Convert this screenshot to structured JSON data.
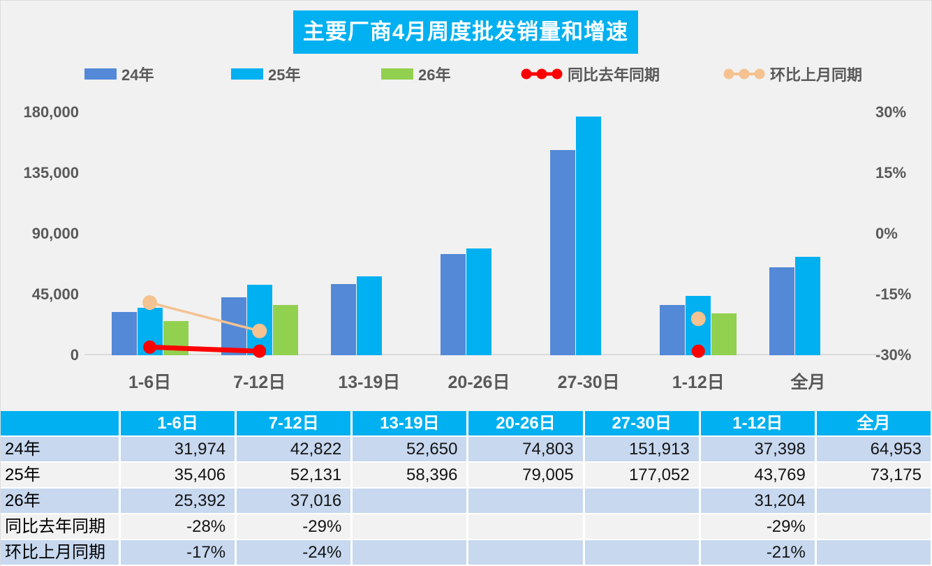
{
  "title": "主要厂商4月周度批发销量和增速",
  "colors": {
    "blue": "#5389d6",
    "cyan": "#00b0f0",
    "green": "#92d050",
    "red": "#ff0000",
    "peach": "#f5c291",
    "axis_text": "#595959",
    "header_bg": "#00b0f0",
    "row_blue": "#c7d8ef",
    "row_gray": "#f2f2f2",
    "background": "#f1f1f1"
  },
  "legend": [
    {
      "label": "24年",
      "type": "bar",
      "color_key": "blue"
    },
    {
      "label": "25年",
      "type": "bar",
      "color_key": "cyan"
    },
    {
      "label": "26年",
      "type": "bar",
      "color_key": "green"
    },
    {
      "label": "同比去年同期",
      "type": "line",
      "color_key": "red"
    },
    {
      "label": "环比上月同期",
      "type": "line",
      "color_key": "peach"
    }
  ],
  "chart_data": {
    "type": "bar+line combo",
    "title": "主要厂商4月周度批发销量和增速",
    "categories": [
      "1-6日",
      "7-12日",
      "13-19日",
      "20-26日",
      "27-30日",
      "1-12日",
      "全月"
    ],
    "bar_series": [
      {
        "name": "24年",
        "color_key": "blue",
        "values": [
          31974,
          42822,
          52650,
          74803,
          151913,
          37398,
          64953
        ]
      },
      {
        "name": "25年",
        "color_key": "cyan",
        "values": [
          35406,
          52131,
          58396,
          79005,
          177052,
          43769,
          73175
        ]
      },
      {
        "name": "26年",
        "color_key": "green",
        "values": [
          25392,
          37016,
          null,
          null,
          null,
          31204,
          null
        ]
      }
    ],
    "line_series": [
      {
        "name": "同比去年同期",
        "color_key": "red",
        "marker_r": 9.5,
        "stroke_w": 7,
        "values_pct": [
          -28,
          -29,
          null,
          null,
          null,
          -29,
          null
        ]
      },
      {
        "name": "环比上月同期",
        "color_key": "peach",
        "marker_r": 10.5,
        "stroke_w": 3.5,
        "values_pct": [
          -17,
          -24,
          null,
          null,
          null,
          -21,
          null
        ]
      }
    ],
    "left_axis": {
      "ticks": [
        "180,000",
        "135,000",
        "90,000",
        "45,000",
        "0"
      ],
      "min": 0,
      "max": 180000
    },
    "right_axis": {
      "ticks": [
        "30%",
        "15%",
        "0%",
        "-15%",
        "-30%"
      ],
      "min": -30,
      "max": 30
    },
    "grid": false,
    "legend_position": "top"
  },
  "table": {
    "header": [
      "",
      "1-6日",
      "7-12日",
      "13-19日",
      "20-26日",
      "27-30日",
      "1-12日",
      "全月"
    ],
    "rows": [
      {
        "label": "24年",
        "cells": [
          "31,974",
          "42,822",
          "52,650",
          "74,803",
          "151,913",
          "37,398",
          "64,953"
        ]
      },
      {
        "label": "25年",
        "cells": [
          "35,406",
          "52,131",
          "58,396",
          "79,005",
          "177,052",
          "43,769",
          "73,175"
        ]
      },
      {
        "label": "26年",
        "cells": [
          "25,392",
          "37,016",
          "",
          "",
          "",
          "31,204",
          ""
        ]
      },
      {
        "label": "同比去年同期",
        "cells": [
          "-28%",
          "-29%",
          "",
          "",
          "",
          "-29%",
          ""
        ]
      },
      {
        "label": "环比上月同期",
        "cells": [
          "-17%",
          "-24%",
          "",
          "",
          "",
          "-21%",
          ""
        ]
      }
    ]
  }
}
